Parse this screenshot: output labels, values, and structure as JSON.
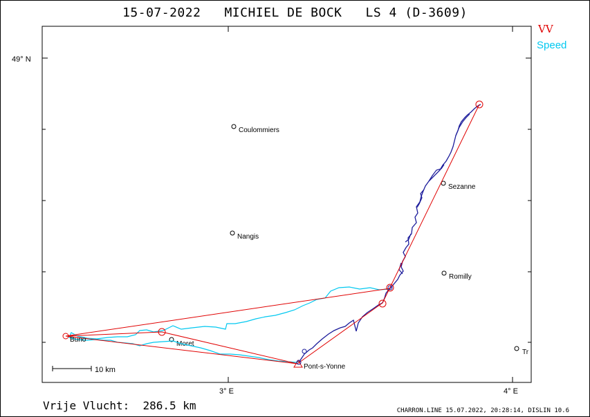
{
  "title": "15-07-2022   MICHIEL DE BOCK   LS 4 (D-3609)",
  "legend": {
    "vv": {
      "label": "VV",
      "color": "#e00000"
    },
    "speed": {
      "label": "Speed",
      "color": "#00c8f0"
    }
  },
  "axes": {
    "lat_label": "49° N",
    "lon_labels": [
      "3° E",
      "4° E"
    ]
  },
  "towns": [
    {
      "name": "Coulommiers"
    },
    {
      "name": "Sezanne"
    },
    {
      "name": "Nangis"
    },
    {
      "name": "Romilly"
    },
    {
      "name": "Buno"
    },
    {
      "name": "Moret"
    },
    {
      "name": "Pont-s-Yonne"
    },
    {
      "name": "Tr"
    }
  ],
  "scale": {
    "label": "10  km"
  },
  "footer": {
    "distance": "Vrije Vlucht:  286.5 km",
    "info": "CHARRON.LINE 15.07.2022, 20:28:14, DISLIN 10.6"
  },
  "colors": {
    "task_line": "#e00000",
    "speed_track": "#00c8f0",
    "flight_track": "#1a1a9a",
    "frame": "#000000"
  }
}
